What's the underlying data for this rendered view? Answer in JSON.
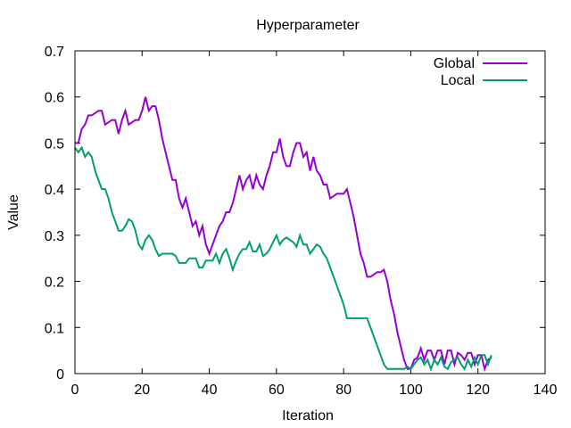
{
  "chart_data": {
    "type": "line",
    "title": "Hyperparameter",
    "xlabel": "Iteration",
    "ylabel": "Value",
    "xlim": [
      0,
      140
    ],
    "ylim": [
      0,
      0.7
    ],
    "xticks": [
      0,
      20,
      40,
      60,
      80,
      100,
      120,
      140
    ],
    "yticks": [
      0,
      0.1,
      0.2,
      0.3,
      0.4,
      0.5,
      0.6,
      0.7
    ],
    "grid": false,
    "legend_position": "top-right",
    "series": [
      {
        "name": "Global",
        "color": "#9400d3",
        "points": [
          [
            0,
            0.5
          ],
          [
            1,
            0.5
          ],
          [
            2,
            0.53
          ],
          [
            3,
            0.54
          ],
          [
            4,
            0.56
          ],
          [
            5,
            0.56
          ],
          [
            6,
            0.565
          ],
          [
            7,
            0.57
          ],
          [
            8,
            0.57
          ],
          [
            9,
            0.54
          ],
          [
            10,
            0.545
          ],
          [
            11,
            0.55
          ],
          [
            12,
            0.55
          ],
          [
            13,
            0.52
          ],
          [
            14,
            0.55
          ],
          [
            15,
            0.57
          ],
          [
            16,
            0.54
          ],
          [
            17,
            0.545
          ],
          [
            18,
            0.55
          ],
          [
            19,
            0.55
          ],
          [
            20,
            0.57
          ],
          [
            21,
            0.6
          ],
          [
            22,
            0.57
          ],
          [
            23,
            0.58
          ],
          [
            24,
            0.58
          ],
          [
            25,
            0.55
          ],
          [
            26,
            0.51
          ],
          [
            27,
            0.48
          ],
          [
            28,
            0.45
          ],
          [
            29,
            0.42
          ],
          [
            30,
            0.42
          ],
          [
            31,
            0.38
          ],
          [
            32,
            0.36
          ],
          [
            33,
            0.38
          ],
          [
            34,
            0.35
          ],
          [
            35,
            0.32
          ],
          [
            36,
            0.33
          ],
          [
            37,
            0.3
          ],
          [
            38,
            0.32
          ],
          [
            39,
            0.28
          ],
          [
            40,
            0.26
          ],
          [
            41,
            0.28
          ],
          [
            42,
            0.3
          ],
          [
            43,
            0.32
          ],
          [
            44,
            0.33
          ],
          [
            45,
            0.35
          ],
          [
            46,
            0.35
          ],
          [
            47,
            0.37
          ],
          [
            48,
            0.4
          ],
          [
            49,
            0.43
          ],
          [
            50,
            0.4
          ],
          [
            51,
            0.42
          ],
          [
            52,
            0.43
          ],
          [
            53,
            0.4
          ],
          [
            54,
            0.43
          ],
          [
            55,
            0.41
          ],
          [
            56,
            0.4
          ],
          [
            57,
            0.43
          ],
          [
            58,
            0.45
          ],
          [
            59,
            0.48
          ],
          [
            60,
            0.48
          ],
          [
            61,
            0.51
          ],
          [
            62,
            0.47
          ],
          [
            63,
            0.45
          ],
          [
            64,
            0.45
          ],
          [
            65,
            0.48
          ],
          [
            66,
            0.5
          ],
          [
            67,
            0.5
          ],
          [
            68,
            0.47
          ],
          [
            69,
            0.48
          ],
          [
            70,
            0.44
          ],
          [
            71,
            0.47
          ],
          [
            72,
            0.44
          ],
          [
            73,
            0.43
          ],
          [
            74,
            0.41
          ],
          [
            75,
            0.41
          ],
          [
            76,
            0.38
          ],
          [
            77,
            0.385
          ],
          [
            78,
            0.39
          ],
          [
            79,
            0.39
          ],
          [
            80,
            0.39
          ],
          [
            81,
            0.4
          ],
          [
            82,
            0.37
          ],
          [
            83,
            0.34
          ],
          [
            84,
            0.3
          ],
          [
            85,
            0.26
          ],
          [
            86,
            0.24
          ],
          [
            87,
            0.21
          ],
          [
            88,
            0.21
          ],
          [
            89,
            0.215
          ],
          [
            90,
            0.22
          ],
          [
            91,
            0.22
          ],
          [
            92,
            0.225
          ],
          [
            93,
            0.2
          ],
          [
            94,
            0.16
          ],
          [
            95,
            0.13
          ],
          [
            96,
            0.09
          ],
          [
            97,
            0.06
          ],
          [
            98,
            0.03
          ],
          [
            99,
            0.01
          ],
          [
            100,
            0.01
          ],
          [
            101,
            0.03
          ],
          [
            102,
            0.035
          ],
          [
            103,
            0.055
          ],
          [
            104,
            0.03
          ],
          [
            105,
            0.05
          ],
          [
            106,
            0.05
          ],
          [
            107,
            0.03
          ],
          [
            108,
            0.05
          ],
          [
            109,
            0.05
          ],
          [
            110,
            0.02
          ],
          [
            111,
            0.05
          ],
          [
            112,
            0.05
          ],
          [
            113,
            0.02
          ],
          [
            114,
            0.045
          ],
          [
            115,
            0.04
          ],
          [
            116,
            0.03
          ],
          [
            117,
            0.045
          ],
          [
            118,
            0.045
          ],
          [
            119,
            0.02
          ],
          [
            120,
            0.04
          ],
          [
            121,
            0.04
          ],
          [
            122,
            0.01
          ],
          [
            123,
            0.03
          ],
          [
            124,
            0.035
          ]
        ]
      },
      {
        "name": "Local",
        "color": "#009e73",
        "points": [
          [
            0,
            0.49
          ],
          [
            1,
            0.48
          ],
          [
            2,
            0.49
          ],
          [
            3,
            0.47
          ],
          [
            4,
            0.48
          ],
          [
            5,
            0.47
          ],
          [
            6,
            0.44
          ],
          [
            7,
            0.42
          ],
          [
            8,
            0.4
          ],
          [
            9,
            0.4
          ],
          [
            10,
            0.38
          ],
          [
            11,
            0.35
          ],
          [
            12,
            0.33
          ],
          [
            13,
            0.31
          ],
          [
            14,
            0.31
          ],
          [
            15,
            0.32
          ],
          [
            16,
            0.335
          ],
          [
            17,
            0.33
          ],
          [
            18,
            0.31
          ],
          [
            19,
            0.28
          ],
          [
            20,
            0.27
          ],
          [
            21,
            0.29
          ],
          [
            22,
            0.3
          ],
          [
            23,
            0.29
          ],
          [
            24,
            0.27
          ],
          [
            25,
            0.255
          ],
          [
            26,
            0.26
          ],
          [
            27,
            0.26
          ],
          [
            28,
            0.26
          ],
          [
            29,
            0.26
          ],
          [
            30,
            0.255
          ],
          [
            31,
            0.24
          ],
          [
            32,
            0.24
          ],
          [
            33,
            0.24
          ],
          [
            34,
            0.25
          ],
          [
            35,
            0.25
          ],
          [
            36,
            0.25
          ],
          [
            37,
            0.23
          ],
          [
            38,
            0.23
          ],
          [
            39,
            0.245
          ],
          [
            40,
            0.245
          ],
          [
            41,
            0.245
          ],
          [
            42,
            0.26
          ],
          [
            43,
            0.24
          ],
          [
            44,
            0.26
          ],
          [
            45,
            0.27
          ],
          [
            46,
            0.25
          ],
          [
            47,
            0.225
          ],
          [
            48,
            0.245
          ],
          [
            49,
            0.26
          ],
          [
            50,
            0.27
          ],
          [
            51,
            0.27
          ],
          [
            52,
            0.285
          ],
          [
            53,
            0.265
          ],
          [
            54,
            0.265
          ],
          [
            55,
            0.28
          ],
          [
            56,
            0.255
          ],
          [
            57,
            0.26
          ],
          [
            58,
            0.27
          ],
          [
            59,
            0.285
          ],
          [
            60,
            0.3
          ],
          [
            61,
            0.28
          ],
          [
            62,
            0.29
          ],
          [
            63,
            0.295
          ],
          [
            64,
            0.29
          ],
          [
            65,
            0.285
          ],
          [
            66,
            0.275
          ],
          [
            67,
            0.3
          ],
          [
            68,
            0.28
          ],
          [
            69,
            0.28
          ],
          [
            70,
            0.26
          ],
          [
            71,
            0.27
          ],
          [
            72,
            0.28
          ],
          [
            73,
            0.275
          ],
          [
            74,
            0.26
          ],
          [
            75,
            0.25
          ],
          [
            76,
            0.23
          ],
          [
            77,
            0.21
          ],
          [
            78,
            0.19
          ],
          [
            79,
            0.17
          ],
          [
            80,
            0.15
          ],
          [
            81,
            0.12
          ],
          [
            82,
            0.12
          ],
          [
            83,
            0.12
          ],
          [
            84,
            0.12
          ],
          [
            85,
            0.12
          ],
          [
            86,
            0.12
          ],
          [
            87,
            0.12
          ],
          [
            88,
            0.1
          ],
          [
            89,
            0.08
          ],
          [
            90,
            0.06
          ],
          [
            91,
            0.04
          ],
          [
            92,
            0.02
          ],
          [
            93,
            0.01
          ],
          [
            94,
            0.01
          ],
          [
            95,
            0.01
          ],
          [
            96,
            0.01
          ],
          [
            97,
            0.01
          ],
          [
            98,
            0.01
          ],
          [
            99,
            0.015
          ],
          [
            100,
            0.01
          ],
          [
            101,
            0.02
          ],
          [
            102,
            0.03
          ],
          [
            103,
            0.035
          ],
          [
            104,
            0.02
          ],
          [
            105,
            0.03
          ],
          [
            106,
            0.01
          ],
          [
            107,
            0.03
          ],
          [
            108,
            0.02
          ],
          [
            109,
            0.035
          ],
          [
            110,
            0.015
          ],
          [
            111,
            0.01
          ],
          [
            112,
            0.025
          ],
          [
            113,
            0.03
          ],
          [
            114,
            0.035
          ],
          [
            115,
            0.02
          ],
          [
            116,
            0.01
          ],
          [
            117,
            0.03
          ],
          [
            118,
            0.015
          ],
          [
            119,
            0.035
          ],
          [
            120,
            0.02
          ],
          [
            121,
            0.04
          ],
          [
            122,
            0.04
          ],
          [
            123,
            0.02
          ],
          [
            124,
            0.04
          ]
        ]
      }
    ]
  }
}
